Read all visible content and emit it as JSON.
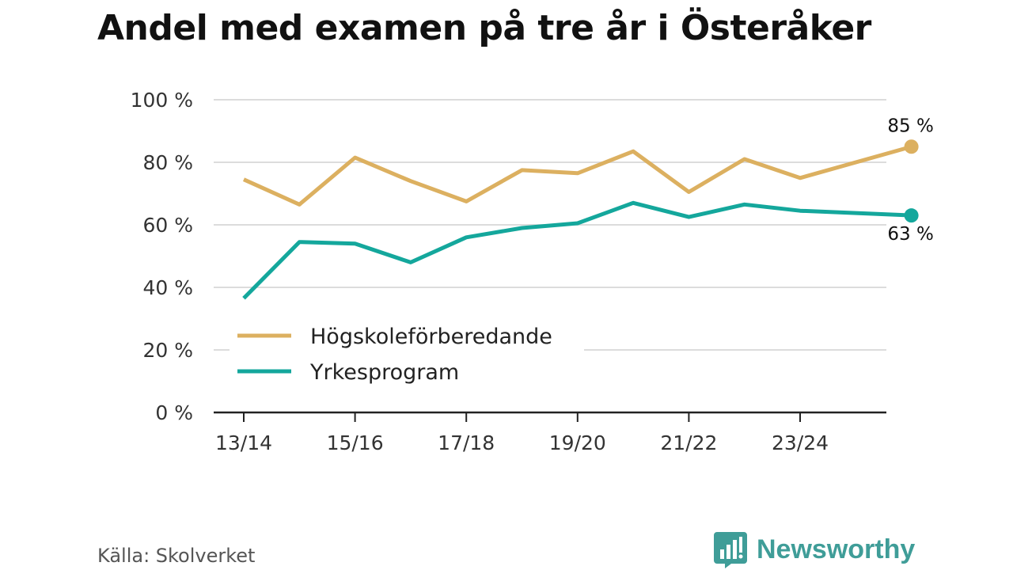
{
  "chart_data": {
    "type": "line",
    "title": "Andel med examen på tre år i Österåker",
    "xlabel": "",
    "ylabel": "",
    "ylim": [
      0,
      100
    ],
    "yticks": [
      0,
      20,
      40,
      60,
      80,
      100
    ],
    "ytick_labels": [
      "0 %",
      "20 %",
      "40 %",
      "60 %",
      "80 %",
      "100 %"
    ],
    "x": [
      0,
      1,
      2,
      3,
      4,
      5,
      6,
      7,
      8,
      9,
      10,
      11,
      12
    ],
    "categories": [
      "13/14",
      "14/15",
      "15/16",
      "16/17",
      "17/18",
      "18/19",
      "19/20",
      "20/21",
      "21/22",
      "22/23",
      "23/24",
      "24/25",
      "25/26"
    ],
    "xtick_indices": [
      0,
      2,
      4,
      6,
      8,
      10
    ],
    "xtick_labels": [
      "13/14",
      "15/16",
      "17/18",
      "19/20",
      "21/22",
      "23/24"
    ],
    "grid": true,
    "legend_position": "center-left",
    "series": [
      {
        "name": "Högskoleförberedande",
        "color": "#dcb060",
        "values": [
          74.5,
          66.5,
          81.5,
          74,
          67.5,
          77.5,
          76.5,
          83.5,
          70.5,
          81,
          75,
          null,
          85
        ],
        "end_label": "85 %"
      },
      {
        "name": "Yrkesprogram",
        "color": "#14a79c",
        "values": [
          36.5,
          54.5,
          54,
          48,
          56,
          59,
          60.5,
          67,
          62.5,
          66.5,
          64.5,
          null,
          63
        ],
        "end_label": "63 %"
      }
    ]
  },
  "footer": {
    "source": "Källa: Skolverket",
    "brand": "Newsworthy"
  }
}
